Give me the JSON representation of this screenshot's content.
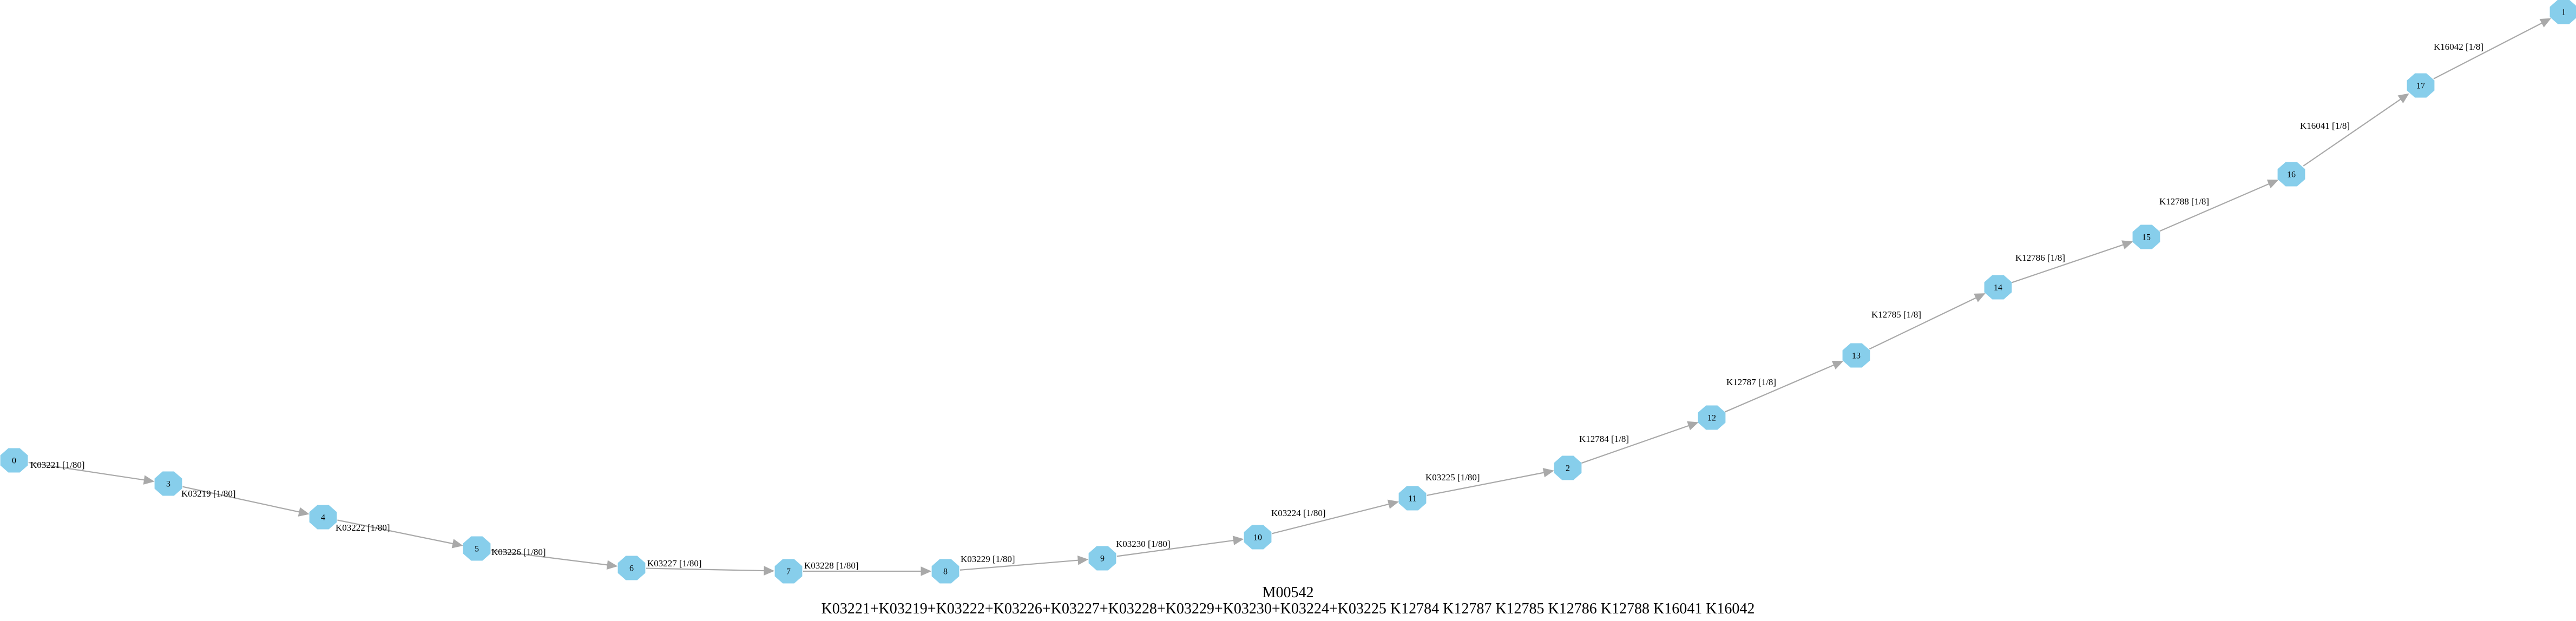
{
  "diagram": {
    "colors": {
      "node_fill": "#87ceeb",
      "edge": "#a9a9a9",
      "text": "#000000",
      "background": "#ffffff"
    },
    "nodes": [
      {
        "id": "0",
        "label": "0"
      },
      {
        "id": "3",
        "label": "3"
      },
      {
        "id": "4",
        "label": "4"
      },
      {
        "id": "5",
        "label": "5"
      },
      {
        "id": "6",
        "label": "6"
      },
      {
        "id": "7",
        "label": "7"
      },
      {
        "id": "8",
        "label": "8"
      },
      {
        "id": "9",
        "label": "9"
      },
      {
        "id": "10",
        "label": "10"
      },
      {
        "id": "11",
        "label": "11"
      },
      {
        "id": "2",
        "label": "2"
      },
      {
        "id": "12",
        "label": "12"
      },
      {
        "id": "13",
        "label": "13"
      },
      {
        "id": "14",
        "label": "14"
      },
      {
        "id": "15",
        "label": "15"
      },
      {
        "id": "16",
        "label": "16"
      },
      {
        "id": "17",
        "label": "17"
      },
      {
        "id": "1",
        "label": "1"
      }
    ],
    "edges": [
      {
        "from": "0",
        "to": "3",
        "label": "K03221 [1/80]"
      },
      {
        "from": "3",
        "to": "4",
        "label": "K03219 [1/80]"
      },
      {
        "from": "4",
        "to": "5",
        "label": "K03222 [1/80]"
      },
      {
        "from": "5",
        "to": "6",
        "label": "K03226 [1/80]"
      },
      {
        "from": "6",
        "to": "7",
        "label": "K03227 [1/80]"
      },
      {
        "from": "7",
        "to": "8",
        "label": "K03228 [1/80]"
      },
      {
        "from": "8",
        "to": "9",
        "label": "K03229 [1/80]"
      },
      {
        "from": "9",
        "to": "10",
        "label": "K03230 [1/80]"
      },
      {
        "from": "10",
        "to": "11",
        "label": "K03224 [1/80]"
      },
      {
        "from": "11",
        "to": "2",
        "label": "K03225 [1/80]"
      },
      {
        "from": "2",
        "to": "12",
        "label": "K12784 [1/8]"
      },
      {
        "from": "12",
        "to": "13",
        "label": "K12787 [1/8]"
      },
      {
        "from": "13",
        "to": "14",
        "label": "K12785 [1/8]"
      },
      {
        "from": "14",
        "to": "15",
        "label": "K12786 [1/8]"
      },
      {
        "from": "15",
        "to": "16",
        "label": "K12788 [1/8]"
      },
      {
        "from": "16",
        "to": "17",
        "label": "K16041 [1/8]"
      },
      {
        "from": "17",
        "to": "1",
        "label": "K16042 [1/8]"
      }
    ],
    "caption": {
      "title": "M00542",
      "definition": "K03221+K03219+K03222+K03226+K03227+K03228+K03229+K03230+K03224+K03225 K12784 K12787 K12785 K12786 K12788 K16041 K16042"
    }
  }
}
